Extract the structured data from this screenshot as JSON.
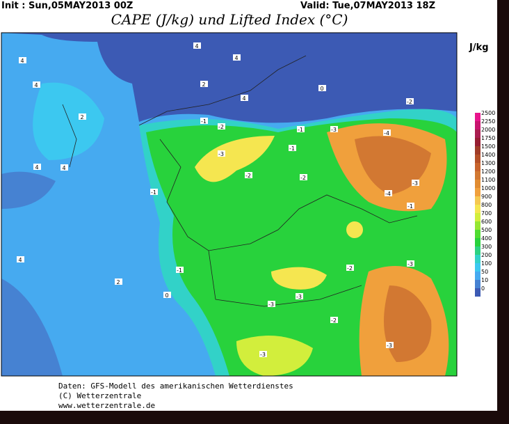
{
  "header": {
    "init": "Init : Sun,05MAY2013 00Z",
    "valid": "Valid: Tue,07MAY2013 18Z",
    "title": "CAPE (J/kg) und Lifted Index (°C)"
  },
  "colorbar": {
    "unit": "J/kg",
    "levels": [
      {
        "value": 2500,
        "color": "#e8148c"
      },
      {
        "value": 2250,
        "color": "#c8146e"
      },
      {
        "value": 2000,
        "color": "#aa1e50"
      },
      {
        "value": 1750,
        "color": "#961e32"
      },
      {
        "value": 1500,
        "color": "#a03c28"
      },
      {
        "value": 1400,
        "color": "#b45028"
      },
      {
        "value": 1300,
        "color": "#c8642d"
      },
      {
        "value": 1200,
        "color": "#d27832"
      },
      {
        "value": 1100,
        "color": "#e18c32"
      },
      {
        "value": 1000,
        "color": "#f0a03c"
      },
      {
        "value": 900,
        "color": "#f5c850"
      },
      {
        "value": 800,
        "color": "#f5e650"
      },
      {
        "value": 700,
        "color": "#d2ee3c"
      },
      {
        "value": 600,
        "color": "#96e632"
      },
      {
        "value": 500,
        "color": "#50dc32"
      },
      {
        "value": 400,
        "color": "#28d23c"
      },
      {
        "value": 300,
        "color": "#2dd282"
      },
      {
        "value": 200,
        "color": "#32d2c8"
      },
      {
        "value": 100,
        "color": "#3cc8f0"
      },
      {
        "value": 50,
        "color": "#46aaf0"
      },
      {
        "value": 10,
        "color": "#4682d2"
      },
      {
        "value": 0,
        "color": "#3c5ab4"
      }
    ]
  },
  "map": {
    "labels": [
      "4",
      "4",
      "4",
      "4",
      "2",
      "2",
      "4",
      "4",
      "4",
      "2",
      "0",
      "-1",
      "-2",
      "-1",
      "-3",
      "-4",
      "-1",
      "-3",
      "-2",
      "-2",
      "-4",
      "-3",
      "-1",
      "-1",
      "-1",
      "-2",
      "-3",
      "-3",
      "-2",
      "-3",
      "0",
      "-2",
      "4",
      "-3",
      "-3"
    ]
  },
  "footer": {
    "lines": [
      "Daten: GFS-Modell des amerikanischen Wetterdienstes",
      "(C) Wetterzentrale",
      "www.wetterzentrale.de"
    ]
  }
}
